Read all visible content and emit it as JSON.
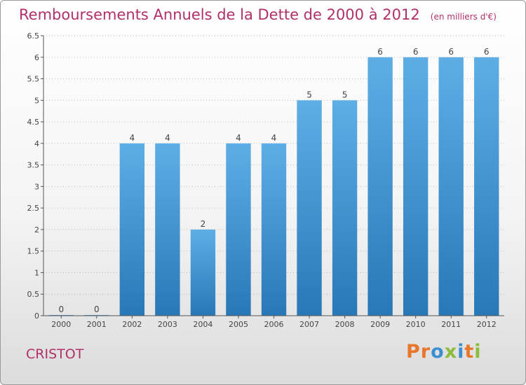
{
  "header": {
    "title": "Remboursements Annuels de la Dette de 2000 à 2012",
    "subtitle": "(en milliers d'€)"
  },
  "footer": {
    "commune": "CRISTOT",
    "logo_text": "Proxiti",
    "logo_colors": [
      "#e8762b",
      "#e8762b",
      "#3b8fd0",
      "#8bbd3a",
      "#3b8fd0",
      "#e8762b",
      "#8bbd3a"
    ]
  },
  "colors": {
    "accent": "#b0306a",
    "bar_top": "#5eaee6",
    "bar_bottom": "#2878b8",
    "grid": "#bbbbbb"
  },
  "chart_data": {
    "type": "bar",
    "title": "Remboursements Annuels de la Dette de 2000 à 2012",
    "categories": [
      "2000",
      "2001",
      "2002",
      "2003",
      "2004",
      "2005",
      "2006",
      "2007",
      "2008",
      "2009",
      "2010",
      "2011",
      "2012"
    ],
    "values": [
      0,
      0,
      4,
      4,
      2,
      4,
      4,
      5,
      5,
      6,
      6,
      6,
      6
    ],
    "data_labels": [
      "0",
      "0",
      "4",
      "4",
      "2",
      "4",
      "4",
      "5",
      "5",
      "6",
      "6",
      "6",
      "6"
    ],
    "yticks": [
      "0",
      "0.5",
      "1",
      "1.5",
      "2",
      "2.5",
      "3",
      "3.5",
      "4",
      "4.5",
      "5",
      "5.5",
      "6",
      "6.5"
    ],
    "ylim": [
      0,
      6.5
    ],
    "xlabel": "",
    "ylabel": "",
    "grid": "horizontal dotted"
  }
}
